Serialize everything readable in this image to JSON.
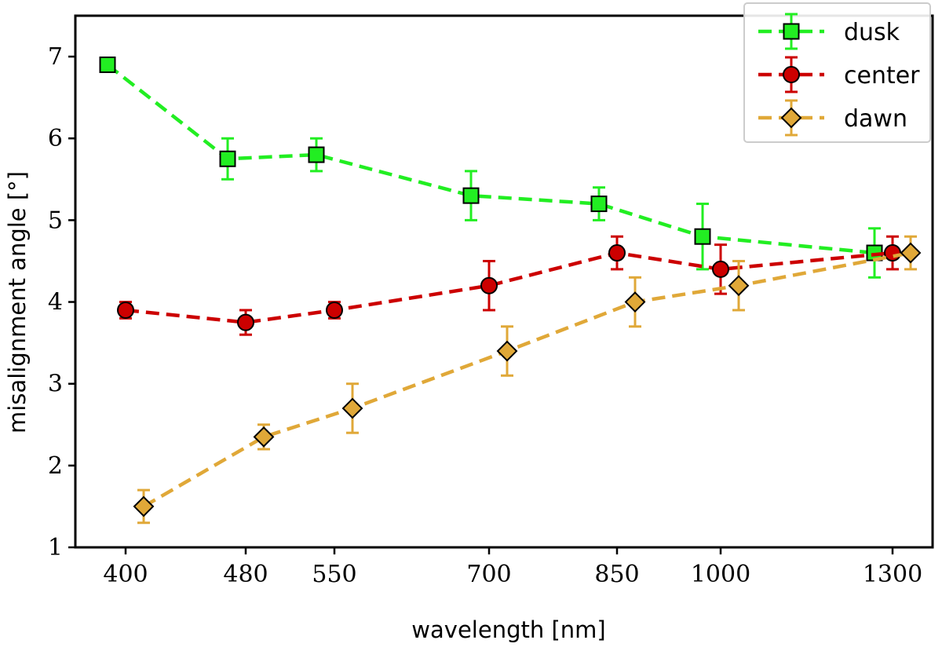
{
  "chart_data": {
    "type": "line",
    "title": "",
    "xlabel": "wavelength [nm]",
    "ylabel": "misalignment angle [°]",
    "x_categories": [
      "400",
      "480",
      "550",
      "700",
      "850",
      "1000",
      "1300"
    ],
    "ylim": [
      1,
      7.5
    ],
    "yticks": [
      1,
      2,
      3,
      4,
      5,
      6,
      7
    ],
    "grid": false,
    "legend_placement": "top-right",
    "series": [
      {
        "name": "dusk",
        "color": "#22ee22",
        "marker": "square",
        "x": [
          400,
          480,
          550,
          700,
          850,
          1000,
          1300
        ],
        "y": [
          6.9,
          5.75,
          5.8,
          5.3,
          5.2,
          4.8,
          4.6
        ],
        "err": [
          0,
          0.25,
          0.2,
          0.3,
          0.2,
          0.4,
          0.3
        ]
      },
      {
        "name": "center",
        "color": "#cc0000",
        "marker": "circle",
        "x": [
          400,
          480,
          550,
          700,
          850,
          1000,
          1300
        ],
        "y": [
          3.9,
          3.75,
          3.9,
          4.2,
          4.6,
          4.4,
          4.6
        ],
        "err": [
          0.1,
          0.15,
          0.1,
          0.3,
          0.2,
          0.3,
          0.2
        ]
      },
      {
        "name": "dawn",
        "color": "#e0a838",
        "marker": "diamond",
        "x": [
          400,
          480,
          550,
          700,
          850,
          1000,
          1300
        ],
        "y": [
          1.5,
          2.35,
          2.7,
          3.4,
          4.0,
          4.2,
          4.6
        ],
        "err": [
          0.2,
          0.15,
          0.3,
          0.3,
          0.3,
          0.3,
          0.2
        ]
      }
    ]
  }
}
